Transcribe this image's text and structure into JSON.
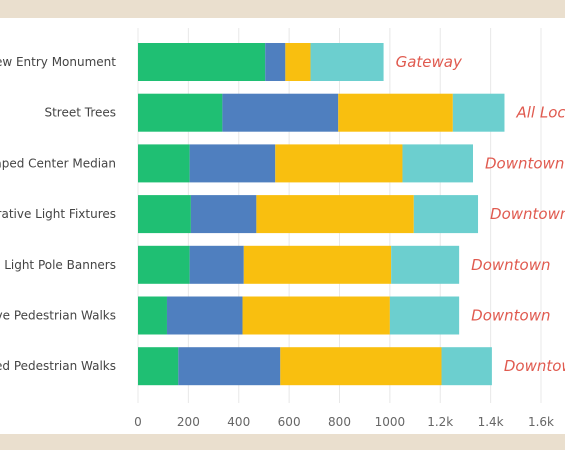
{
  "chart_data": {
    "type": "bar",
    "orientation": "horizontal",
    "stacked": true,
    "categories": [
      "New Entry Monument",
      "Street Trees",
      "Landscaped Center Median",
      "Decorative Light Fixtures",
      "Light Pole Banners",
      "Decorative Pedestrian Walks",
      "Stamped Pedestrian Walks"
    ],
    "series": [
      {
        "color": "#1fbf73",
        "values": [
          505,
          335,
          205,
          210,
          205,
          115,
          160
        ]
      },
      {
        "color": "#4f7fbf",
        "values": [
          80,
          460,
          340,
          260,
          215,
          300,
          405
        ]
      },
      {
        "color": "#f9bf0f",
        "values": [
          100,
          455,
          505,
          625,
          585,
          585,
          640
        ]
      },
      {
        "color": "#6ccfcf",
        "values": [
          290,
          205,
          280,
          255,
          270,
          275,
          200
        ]
      }
    ],
    "annotations": [
      "Gateway",
      "All Locations",
      "Downtown",
      "Downtown",
      "Downtown",
      "Downtown",
      "Downtown"
    ],
    "xlim": [
      0,
      1600
    ],
    "xticks": [
      0,
      200,
      400,
      600,
      800,
      1000,
      1200,
      1400,
      1600
    ],
    "xtick_labels": [
      "0",
      "200",
      "400",
      "600",
      "800",
      "1000",
      "1.2k",
      "1.4k",
      "1.6k"
    ],
    "grid": "vertical",
    "annotation_color": "#e05a4f",
    "grid_color": "#e8e8e8"
  }
}
